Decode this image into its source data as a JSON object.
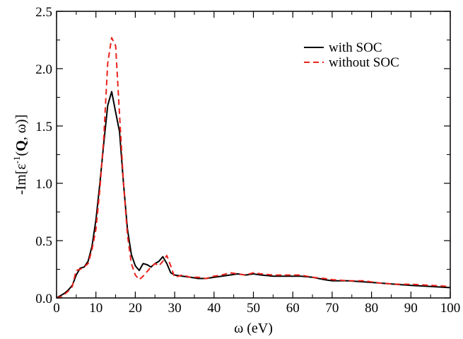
{
  "chart_data": {
    "type": "line",
    "xlabel": "ω (eV)",
    "ylabel": {
      "pre": "-Im[ε",
      "sup": "-1",
      "open": "(",
      "bold": "Q",
      "post": ", ω)]"
    },
    "xlim": [
      0,
      100
    ],
    "ylim": [
      0,
      2.5
    ],
    "xticks": [
      0,
      10,
      20,
      30,
      40,
      50,
      60,
      70,
      80,
      90,
      100
    ],
    "yticks": [
      0.0,
      0.5,
      1.0,
      1.5,
      2.0,
      2.5
    ],
    "ytick_labels": [
      "0.0",
      "0.5",
      "1.0",
      "1.5",
      "2.0",
      "2.5"
    ],
    "grid": false,
    "legend_position": "top-right",
    "series": [
      {
        "name": "with SOC",
        "color": "#000000",
        "dash": "solid",
        "points": [
          [
            0,
            0.0
          ],
          [
            1,
            0.02
          ],
          [
            2,
            0.04
          ],
          [
            3,
            0.07
          ],
          [
            4,
            0.11
          ],
          [
            5,
            0.2
          ],
          [
            6,
            0.26
          ],
          [
            7,
            0.27
          ],
          [
            8,
            0.32
          ],
          [
            9,
            0.45
          ],
          [
            10,
            0.68
          ],
          [
            11,
            1.0
          ],
          [
            12,
            1.35
          ],
          [
            13,
            1.68
          ],
          [
            14,
            1.8
          ],
          [
            15,
            1.62
          ],
          [
            16,
            1.45
          ],
          [
            17,
            1.0
          ],
          [
            18,
            0.6
          ],
          [
            19,
            0.38
          ],
          [
            20,
            0.28
          ],
          [
            21,
            0.24
          ],
          [
            22,
            0.3
          ],
          [
            23,
            0.29
          ],
          [
            24,
            0.27
          ],
          [
            25,
            0.3
          ],
          [
            26,
            0.32
          ],
          [
            27,
            0.36
          ],
          [
            28,
            0.3
          ],
          [
            29,
            0.22
          ],
          [
            30,
            0.2
          ],
          [
            32,
            0.19
          ],
          [
            34,
            0.18
          ],
          [
            36,
            0.17
          ],
          [
            38,
            0.17
          ],
          [
            40,
            0.18
          ],
          [
            42,
            0.19
          ],
          [
            44,
            0.2
          ],
          [
            46,
            0.21
          ],
          [
            48,
            0.2
          ],
          [
            50,
            0.21
          ],
          [
            52,
            0.2
          ],
          [
            55,
            0.19
          ],
          [
            58,
            0.19
          ],
          [
            60,
            0.19
          ],
          [
            62,
            0.19
          ],
          [
            65,
            0.18
          ],
          [
            68,
            0.16
          ],
          [
            70,
            0.15
          ],
          [
            74,
            0.15
          ],
          [
            78,
            0.14
          ],
          [
            82,
            0.13
          ],
          [
            86,
            0.12
          ],
          [
            90,
            0.11
          ],
          [
            95,
            0.1
          ],
          [
            100,
            0.09
          ]
        ]
      },
      {
        "name": "without  SOC",
        "color": "#e8221b",
        "dash": "dashed",
        "points": [
          [
            0,
            0.0
          ],
          [
            1,
            0.01
          ],
          [
            2,
            0.03
          ],
          [
            3,
            0.06
          ],
          [
            4,
            0.1
          ],
          [
            5,
            0.24
          ],
          [
            6,
            0.25
          ],
          [
            7,
            0.27
          ],
          [
            8,
            0.3
          ],
          [
            9,
            0.42
          ],
          [
            10,
            0.6
          ],
          [
            11,
            0.95
          ],
          [
            12,
            1.4
          ],
          [
            13,
            2.05
          ],
          [
            14,
            2.27
          ],
          [
            15,
            2.2
          ],
          [
            16,
            1.6
          ],
          [
            17,
            1.0
          ],
          [
            18,
            0.55
          ],
          [
            19,
            0.3
          ],
          [
            20,
            0.2
          ],
          [
            21,
            0.16
          ],
          [
            22,
            0.19
          ],
          [
            23,
            0.23
          ],
          [
            24,
            0.27
          ],
          [
            25,
            0.3
          ],
          [
            26,
            0.28
          ],
          [
            27,
            0.32
          ],
          [
            28,
            0.37
          ],
          [
            29,
            0.28
          ],
          [
            30,
            0.18
          ],
          [
            32,
            0.2
          ],
          [
            34,
            0.18
          ],
          [
            36,
            0.18
          ],
          [
            38,
            0.17
          ],
          [
            40,
            0.19
          ],
          [
            42,
            0.2
          ],
          [
            44,
            0.22
          ],
          [
            46,
            0.21
          ],
          [
            48,
            0.2
          ],
          [
            50,
            0.22
          ],
          [
            52,
            0.21
          ],
          [
            55,
            0.2
          ],
          [
            58,
            0.2
          ],
          [
            60,
            0.2
          ],
          [
            62,
            0.2
          ],
          [
            65,
            0.18
          ],
          [
            68,
            0.17
          ],
          [
            70,
            0.16
          ],
          [
            74,
            0.15
          ],
          [
            78,
            0.15
          ],
          [
            82,
            0.13
          ],
          [
            86,
            0.12
          ],
          [
            90,
            0.12
          ],
          [
            95,
            0.11
          ],
          [
            100,
            0.1
          ]
        ]
      }
    ]
  }
}
